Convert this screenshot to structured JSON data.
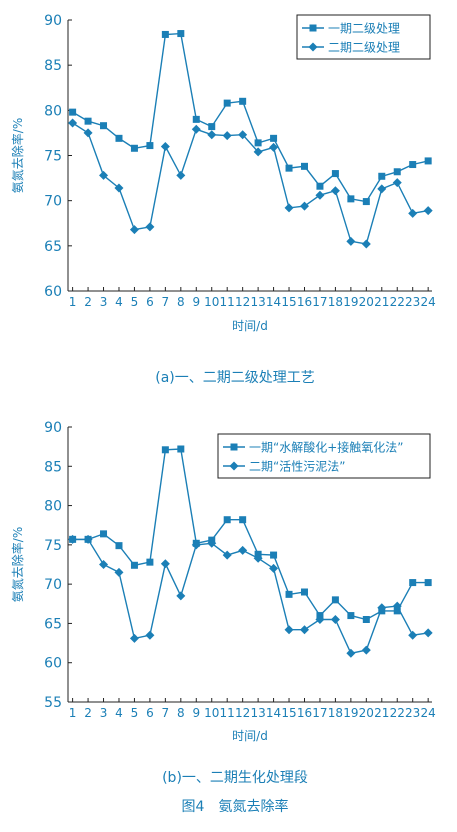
{
  "figure_title": "图4　氨氮去除率",
  "chart_data": [
    {
      "type": "line",
      "caption": "(a)一、二期二级处理工艺",
      "xlabel": "时间/d",
      "ylabel": "氨氮去除率/%",
      "x": [
        1,
        2,
        3,
        4,
        5,
        6,
        7,
        8,
        9,
        10,
        11,
        12,
        13,
        14,
        15,
        16,
        17,
        18,
        19,
        20,
        21,
        22,
        23,
        24
      ],
      "ylim": [
        60,
        90
      ],
      "yticks": [
        60,
        65,
        70,
        75,
        80,
        85,
        90
      ],
      "legend_position": "top-right",
      "series": [
        {
          "name": "一期二级处理",
          "marker": "square",
          "values": [
            79.8,
            78.8,
            78.3,
            76.9,
            75.8,
            76.1,
            88.4,
            88.5,
            79.0,
            78.2,
            80.8,
            81.0,
            76.4,
            76.9,
            73.6,
            73.8,
            71.6,
            73.0,
            70.2,
            69.9,
            72.7,
            73.2,
            74.0,
            74.4
          ]
        },
        {
          "name": "二期二级处理",
          "marker": "diamond",
          "values": [
            78.6,
            77.5,
            72.8,
            71.4,
            66.8,
            67.1,
            76.0,
            72.8,
            77.9,
            77.3,
            77.2,
            77.3,
            75.4,
            75.9,
            69.2,
            69.4,
            70.6,
            71.1,
            65.5,
            65.2,
            71.3,
            72.0,
            68.6,
            68.9
          ]
        }
      ]
    },
    {
      "type": "line",
      "caption": "(b)一、二期生化处理段",
      "xlabel": "时间/d",
      "ylabel": "氨氮去除率/%",
      "x": [
        1,
        2,
        3,
        4,
        5,
        6,
        7,
        8,
        9,
        10,
        11,
        12,
        13,
        14,
        15,
        16,
        17,
        18,
        19,
        20,
        21,
        22,
        23,
        24
      ],
      "ylim": [
        55,
        90
      ],
      "yticks": [
        55,
        60,
        65,
        70,
        75,
        80,
        85,
        90
      ],
      "legend_position": "top-right",
      "series": [
        {
          "name": "一期“水解酸化+接触氧化法”",
          "marker": "square",
          "values": [
            75.7,
            75.7,
            76.4,
            74.9,
            72.4,
            72.8,
            87.1,
            87.2,
            75.2,
            75.6,
            78.2,
            78.2,
            73.8,
            73.7,
            68.7,
            69.0,
            66.0,
            68.0,
            66.0,
            65.5,
            66.6,
            66.6,
            70.2,
            70.2
          ]
        },
        {
          "name": "二期“活性污泥法”",
          "marker": "diamond",
          "values": [
            75.7,
            75.7,
            72.5,
            71.5,
            63.1,
            63.5,
            72.6,
            68.5,
            75.0,
            75.2,
            73.7,
            74.3,
            73.3,
            72.0,
            64.2,
            64.2,
            65.5,
            65.5,
            61.2,
            61.6,
            67.0,
            67.2,
            63.5,
            63.8
          ]
        }
      ]
    }
  ]
}
